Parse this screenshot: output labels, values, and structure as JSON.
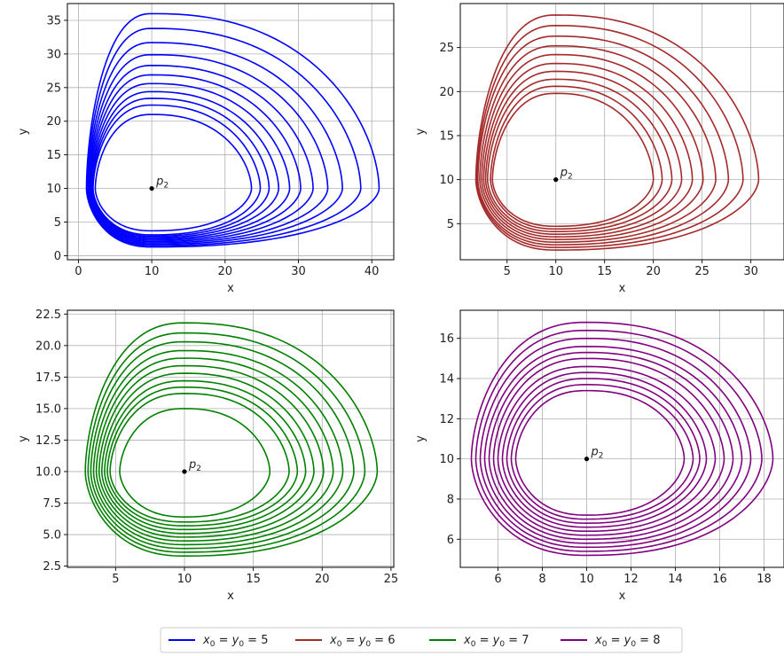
{
  "figure": {
    "legend": [
      {
        "label_main": "x",
        "sub0": "0",
        "eq1": " = ",
        "label_y": "y",
        "sub1": "0",
        "eq2": " = ",
        "value": "5",
        "color": "#0000ff"
      },
      {
        "label_main": "x",
        "sub0": "0",
        "eq1": " = ",
        "label_y": "y",
        "sub1": "0",
        "eq2": " = ",
        "value": "6",
        "color": "#a52a2a"
      },
      {
        "label_main": "x",
        "sub0": "0",
        "eq1": " = ",
        "label_y": "y",
        "sub1": "0",
        "eq2": " = ",
        "value": "7",
        "color": "#008000"
      },
      {
        "label_main": "x",
        "sub0": "0",
        "eq1": " = ",
        "label_y": "y",
        "sub1": "0",
        "eq2": " = ",
        "value": "8",
        "color": "#800080"
      }
    ]
  },
  "chart_data": [
    {
      "type": "line",
      "title": "",
      "xlabel": "x",
      "ylabel": "y",
      "xlim": [
        -1.5,
        43
      ],
      "ylim": [
        -0.6,
        37.5
      ],
      "xticks": [
        0,
        10,
        20,
        30,
        40
      ],
      "yticks": [
        0,
        5,
        10,
        15,
        20,
        25,
        30,
        35
      ],
      "grid": true,
      "color": "#0000ff",
      "equilibrium": {
        "x": 10,
        "y": 10,
        "label": "p",
        "sub": "2"
      },
      "orbits": [
        {
          "x_right": 41.0,
          "y_top": 36.0,
          "y_bottom": 1.3,
          "x_left": 1.1
        },
        {
          "x_right": 38.5,
          "y_top": 33.8,
          "y_bottom": 1.5,
          "x_left": 1.2
        },
        {
          "x_right": 36.0,
          "y_top": 31.7,
          "y_bottom": 1.7,
          "x_left": 1.3
        },
        {
          "x_right": 34.0,
          "y_top": 29.9,
          "y_bottom": 1.9,
          "x_left": 1.4
        },
        {
          "x_right": 32.0,
          "y_top": 28.3,
          "y_bottom": 2.1,
          "x_left": 1.5
        },
        {
          "x_right": 30.3,
          "y_top": 26.9,
          "y_bottom": 2.3,
          "x_left": 1.6
        },
        {
          "x_right": 28.8,
          "y_top": 25.6,
          "y_bottom": 2.5,
          "x_left": 1.7
        },
        {
          "x_right": 27.3,
          "y_top": 24.4,
          "y_bottom": 2.7,
          "x_left": 1.8
        },
        {
          "x_right": 26.0,
          "y_top": 23.4,
          "y_bottom": 2.9,
          "x_left": 1.9
        },
        {
          "x_right": 24.8,
          "y_top": 22.4,
          "y_bottom": 3.1,
          "x_left": 2.0
        },
        {
          "x_right": 23.6,
          "y_top": 21.0,
          "y_bottom": 3.7,
          "x_left": 2.3
        }
      ]
    },
    {
      "type": "line",
      "title": "",
      "xlabel": "x",
      "ylabel": "y",
      "xlim": [
        0.2,
        33.4
      ],
      "ylim": [
        0.9,
        30.0
      ],
      "xticks": [
        5,
        10,
        15,
        20,
        25,
        30
      ],
      "yticks": [
        5,
        10,
        15,
        20,
        25
      ],
      "grid": true,
      "color": "#a52a2a",
      "equilibrium": {
        "x": 10,
        "y": 10,
        "label": "p",
        "sub": "2"
      },
      "orbits": [
        {
          "x_right": 30.8,
          "y_top": 28.7,
          "y_bottom": 2.0,
          "x_left": 1.8
        },
        {
          "x_right": 29.2,
          "y_top": 27.5,
          "y_bottom": 2.3,
          "x_left": 1.9
        },
        {
          "x_right": 27.7,
          "y_top": 26.3,
          "y_bottom": 2.6,
          "x_left": 2.0
        },
        {
          "x_right": 26.4,
          "y_top": 25.2,
          "y_bottom": 2.9,
          "x_left": 2.2
        },
        {
          "x_right": 25.1,
          "y_top": 24.2,
          "y_bottom": 3.2,
          "x_left": 2.4
        },
        {
          "x_right": 24.0,
          "y_top": 23.2,
          "y_bottom": 3.5,
          "x_left": 2.6
        },
        {
          "x_right": 22.9,
          "y_top": 22.3,
          "y_bottom": 3.8,
          "x_left": 2.8
        },
        {
          "x_right": 21.9,
          "y_top": 21.4,
          "y_bottom": 4.1,
          "x_left": 3.0
        },
        {
          "x_right": 20.9,
          "y_top": 20.6,
          "y_bottom": 4.4,
          "x_left": 3.3
        },
        {
          "x_right": 20.0,
          "y_top": 19.8,
          "y_bottom": 4.7,
          "x_left": 3.5
        }
      ]
    },
    {
      "type": "line",
      "title": "",
      "xlabel": "x",
      "ylabel": "y",
      "xlim": [
        1.5,
        25.2
      ],
      "ylim": [
        2.4,
        22.8
      ],
      "xticks": [
        5,
        10,
        15,
        20,
        25
      ],
      "yticks": [
        2.5,
        5.0,
        7.5,
        10.0,
        12.5,
        15.0,
        17.5,
        20.0,
        22.5
      ],
      "grid": true,
      "color": "#008000",
      "equilibrium": {
        "x": 10,
        "y": 10,
        "label": "p",
        "sub": "2"
      },
      "orbits": [
        {
          "x_right": 24.0,
          "y_top": 21.8,
          "y_bottom": 3.3,
          "x_left": 2.8
        },
        {
          "x_right": 23.1,
          "y_top": 21.0,
          "y_bottom": 3.6,
          "x_left": 3.0
        },
        {
          "x_right": 22.3,
          "y_top": 20.3,
          "y_bottom": 3.9,
          "x_left": 3.2
        },
        {
          "x_right": 21.5,
          "y_top": 19.6,
          "y_bottom": 4.2,
          "x_left": 3.4
        },
        {
          "x_right": 20.8,
          "y_top": 19.0,
          "y_bottom": 4.5,
          "x_left": 3.6
        },
        {
          "x_right": 20.1,
          "y_top": 18.4,
          "y_bottom": 4.8,
          "x_left": 3.8
        },
        {
          "x_right": 19.4,
          "y_top": 17.8,
          "y_bottom": 5.1,
          "x_left": 4.0
        },
        {
          "x_right": 18.8,
          "y_top": 17.2,
          "y_bottom": 5.4,
          "x_left": 4.2
        },
        {
          "x_right": 18.2,
          "y_top": 16.7,
          "y_bottom": 5.7,
          "x_left": 4.4
        },
        {
          "x_right": 17.6,
          "y_top": 16.2,
          "y_bottom": 6.0,
          "x_left": 4.6
        },
        {
          "x_right": 16.2,
          "y_top": 15.0,
          "y_bottom": 6.4,
          "x_left": 5.3
        }
      ]
    },
    {
      "type": "line",
      "title": "",
      "xlabel": "x",
      "ylabel": "y",
      "xlim": [
        4.3,
        18.9
      ],
      "ylim": [
        4.6,
        17.4
      ],
      "xticks": [
        6,
        8,
        10,
        12,
        14,
        16,
        18
      ],
      "yticks": [
        6,
        8,
        10,
        12,
        14,
        16
      ],
      "grid": true,
      "color": "#800080",
      "equilibrium": {
        "x": 10,
        "y": 10,
        "label": "p",
        "sub": "2"
      },
      "orbits": [
        {
          "x_right": 18.4,
          "y_top": 16.8,
          "y_bottom": 5.2,
          "x_left": 4.8
        },
        {
          "x_right": 17.9,
          "y_top": 16.4,
          "y_bottom": 5.4,
          "x_left": 5.0
        },
        {
          "x_right": 17.4,
          "y_top": 16.0,
          "y_bottom": 5.6,
          "x_left": 5.2
        },
        {
          "x_right": 17.0,
          "y_top": 15.6,
          "y_bottom": 5.8,
          "x_left": 5.4
        },
        {
          "x_right": 16.6,
          "y_top": 15.3,
          "y_bottom": 6.0,
          "x_left": 5.6
        },
        {
          "x_right": 16.2,
          "y_top": 15.0,
          "y_bottom": 6.2,
          "x_left": 5.8
        },
        {
          "x_right": 15.8,
          "y_top": 14.6,
          "y_bottom": 6.4,
          "x_left": 6.0
        },
        {
          "x_right": 15.4,
          "y_top": 14.3,
          "y_bottom": 6.6,
          "x_left": 6.2
        },
        {
          "x_right": 15.1,
          "y_top": 14.0,
          "y_bottom": 6.8,
          "x_left": 6.4
        },
        {
          "x_right": 14.8,
          "y_top": 13.7,
          "y_bottom": 7.0,
          "x_left": 6.6
        },
        {
          "x_right": 14.4,
          "y_top": 13.4,
          "y_bottom": 7.2,
          "x_left": 6.8
        }
      ]
    }
  ]
}
